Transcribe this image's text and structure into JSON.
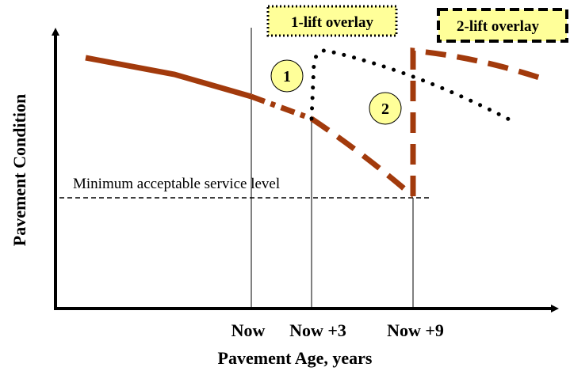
{
  "diagram": {
    "y_axis_label": "Pavement Condition",
    "x_axis_label": "Pavement Age, years",
    "x_labels": [
      "Now",
      "Now +3",
      "Now +9"
    ],
    "threshold_label": "Minimum acceptable service level",
    "boxes": [
      "1-lift overlay",
      "2-lift overlay"
    ],
    "markers": [
      "1",
      "2"
    ]
  }
}
